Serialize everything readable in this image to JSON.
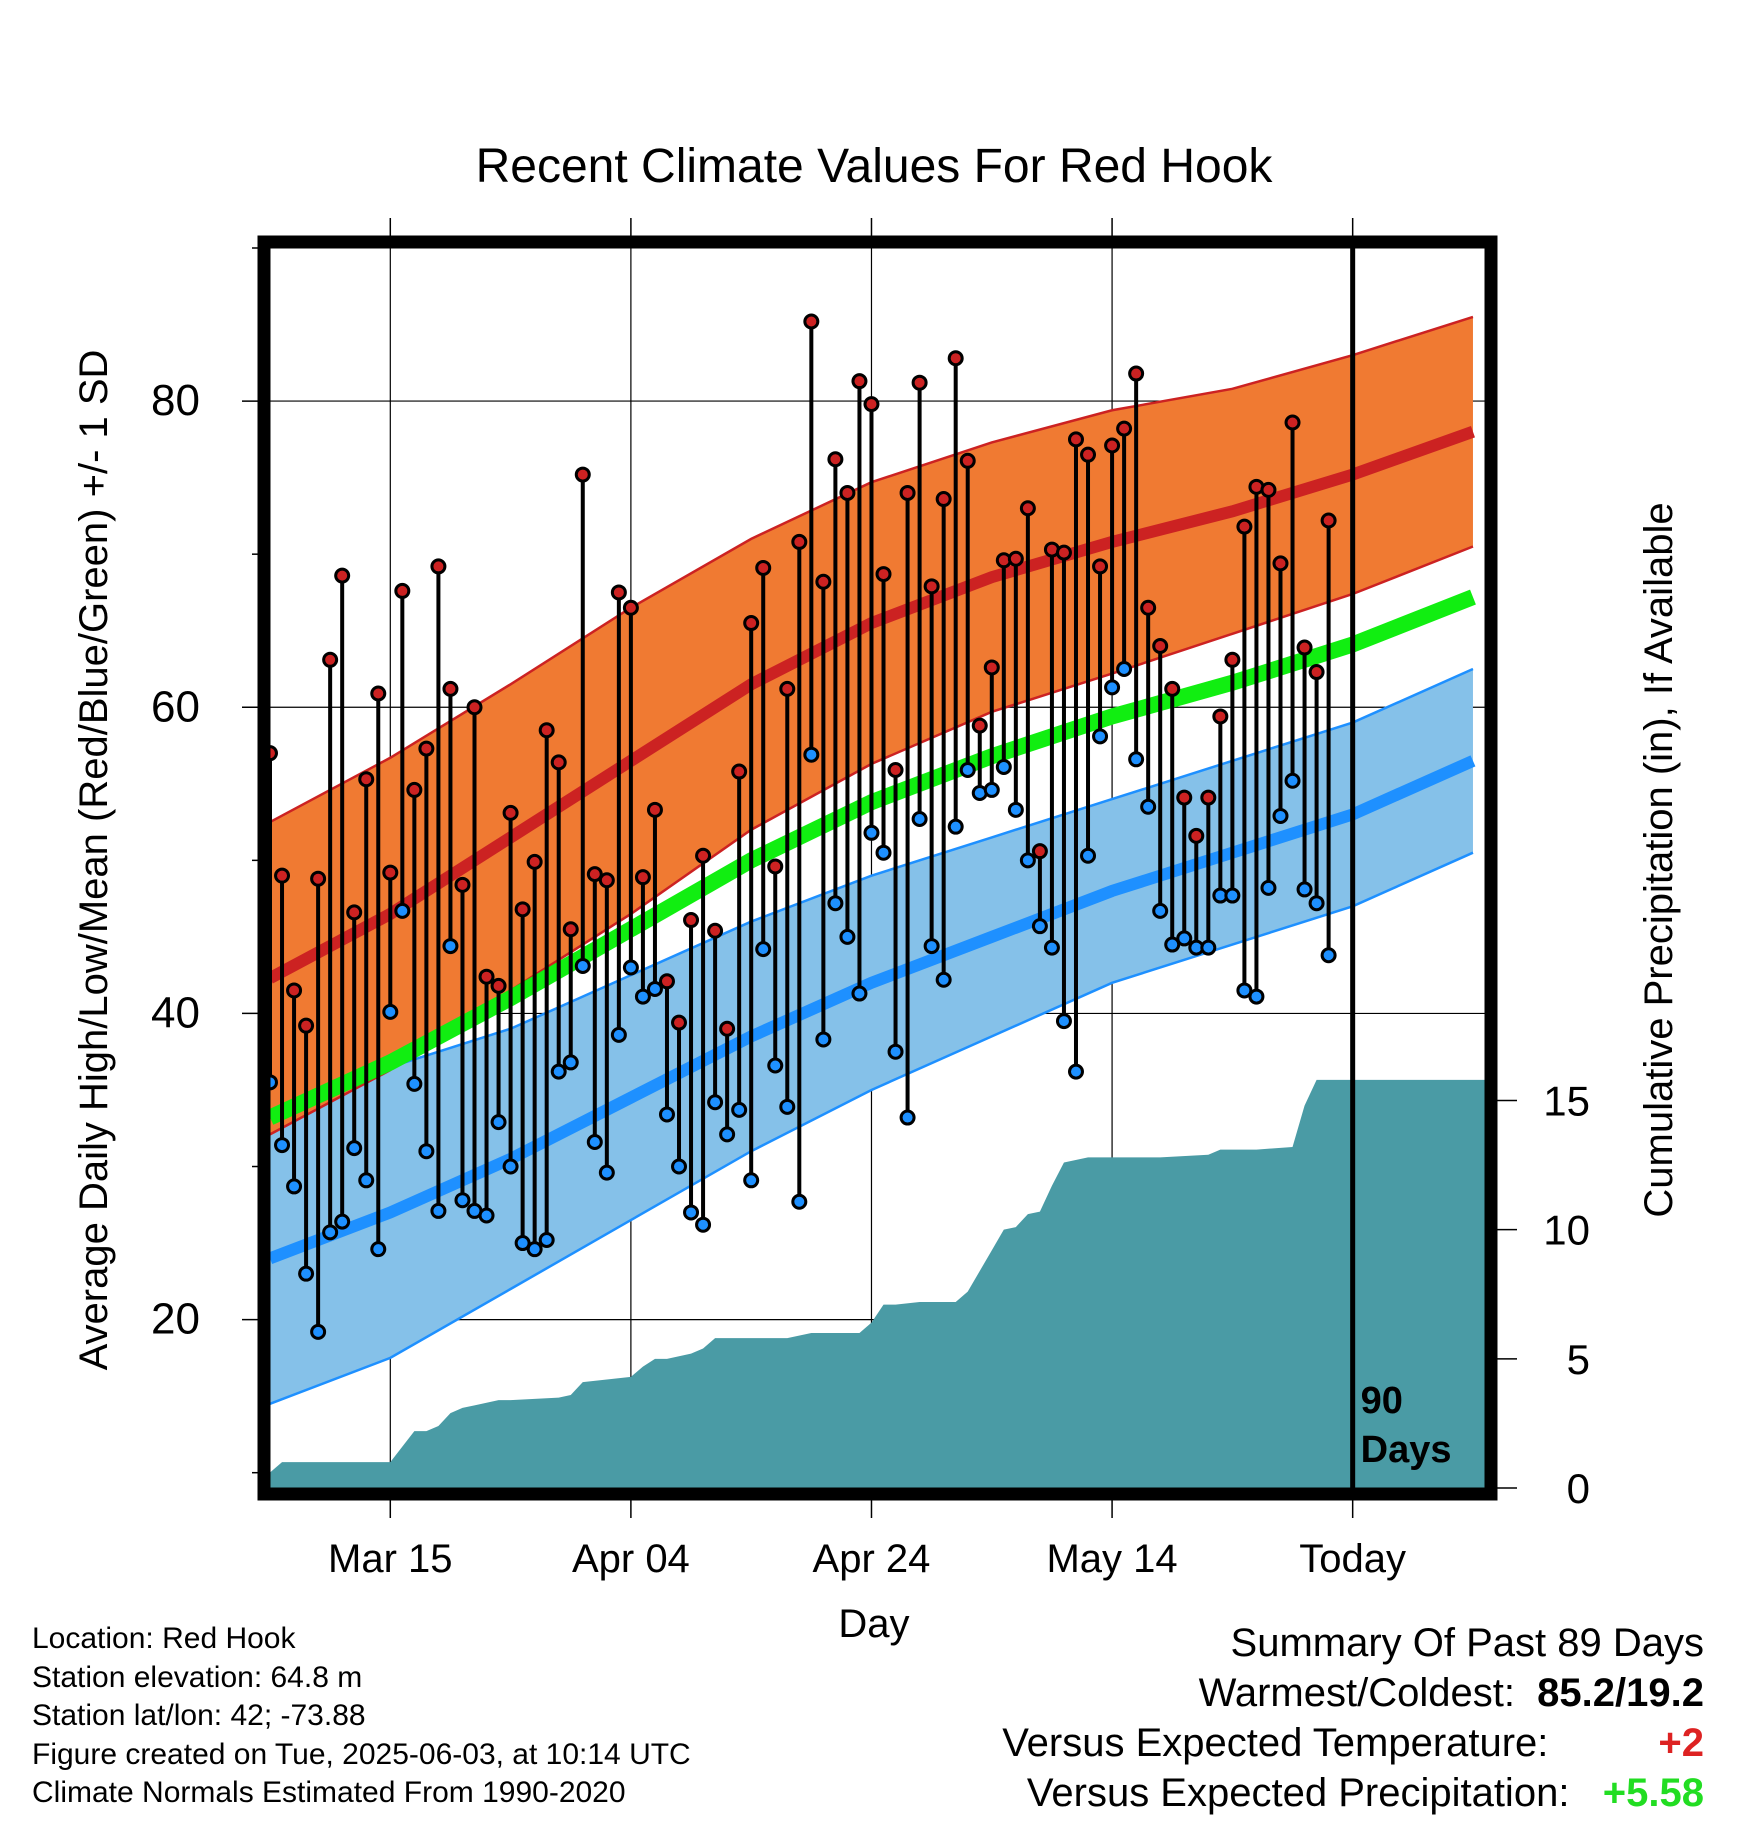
{
  "chart_data": {
    "type": "line",
    "title": "Recent Climate Values For Red Hook",
    "xlabel": "Day",
    "ylabel": "Average Daily High/Low/Mean (Red/Blue/Green) +/- 1 SD",
    "y2label": "Cumulative Precipitation (in), If Available",
    "xlim": [
      1,
      102
    ],
    "ylim": [
      9,
      90
    ],
    "y2lim": [
      0,
      48
    ],
    "x_ticks": [
      {
        "x": 11,
        "label": "Mar 15"
      },
      {
        "x": 31,
        "label": "Apr 04"
      },
      {
        "x": 51,
        "label": "Apr 24"
      },
      {
        "x": 71,
        "label": "May 14"
      },
      {
        "x": 91,
        "label": "Today"
      }
    ],
    "y_ticks": [
      20,
      40,
      60,
      80
    ],
    "y2_ticks": [
      0,
      5,
      10,
      15
    ],
    "today_marker": {
      "x": 91,
      "label_line1": "90",
      "label_line2": "Days"
    },
    "colors": {
      "high_band": "#f07a32",
      "high_mean": "#cc2222",
      "low_band": "#85c1e9",
      "low_mean": "#1e90ff",
      "mean": "#11ee11",
      "precip": "#4a9ba5",
      "high_point": "#cc2222",
      "low_point": "#1e90ff"
    },
    "normals": {
      "x": [
        1,
        11,
        21,
        31,
        41,
        51,
        61,
        71,
        81,
        91,
        101
      ],
      "high_mean": [
        42.3,
        46.5,
        51.5,
        56.5,
        61.5,
        65.5,
        68.5,
        70.8,
        72.8,
        75.2,
        78.0
      ],
      "high_sd": [
        10.2,
        10.2,
        10.0,
        10.0,
        9.5,
        9.2,
        8.8,
        8.6,
        8.0,
        7.8,
        7.5
      ],
      "low_mean": [
        24.0,
        27.0,
        30.5,
        34.5,
        38.5,
        42.0,
        45.0,
        48.0,
        50.5,
        53.0,
        56.5
      ],
      "low_sd": [
        9.5,
        9.5,
        8.5,
        8.0,
        7.5,
        7.0,
        6.5,
        6.0,
        6.0,
        6.0,
        6.0
      ],
      "mean": [
        33.2,
        36.8,
        41.0,
        45.5,
        50.0,
        53.8,
        56.8,
        59.4,
        61.6,
        64.1,
        67.2
      ]
    },
    "daily_highs": [
      57.0,
      49.0,
      41.5,
      39.2,
      48.8,
      63.1,
      68.6,
      46.6,
      55.3,
      60.9,
      49.2,
      67.6,
      54.6,
      57.3,
      69.2,
      61.2,
      48.4,
      60.0,
      42.4,
      41.8,
      53.1,
      46.8,
      49.9,
      58.5,
      56.4,
      45.5,
      75.2,
      49.1,
      48.7,
      67.5,
      66.5,
      48.9,
      53.3,
      42.1,
      39.4,
      46.1,
      50.3,
      45.4,
      39.0,
      55.8,
      65.5,
      69.1,
      49.6,
      61.2,
      70.8,
      85.2,
      68.2,
      76.2,
      74.0,
      81.3,
      79.8,
      68.7,
      55.9,
      74.0,
      81.2,
      67.9,
      73.6,
      82.8,
      76.1,
      58.8,
      62.6,
      69.6,
      69.7,
      73.0,
      50.6,
      70.3,
      70.1,
      77.5,
      76.5,
      69.2,
      77.1,
      78.2,
      81.8,
      66.5,
      64.0,
      61.2,
      54.1,
      51.6,
      54.1,
      59.4,
      63.1,
      71.8,
      74.4,
      74.2,
      69.4,
      78.6,
      63.9,
      62.3,
      72.2
    ],
    "daily_lows": [
      35.5,
      31.4,
      28.7,
      23.0,
      19.2,
      25.7,
      26.4,
      31.2,
      29.1,
      24.6,
      40.1,
      46.7,
      35.4,
      31.0,
      27.1,
      44.4,
      27.8,
      27.1,
      26.8,
      32.9,
      30.0,
      25.0,
      24.6,
      25.2,
      36.2,
      36.8,
      43.1,
      31.6,
      29.6,
      38.6,
      43.0,
      41.1,
      41.6,
      33.4,
      30.0,
      27.0,
      26.2,
      34.2,
      32.1,
      33.7,
      29.1,
      44.2,
      36.6,
      33.9,
      27.7,
      56.9,
      38.3,
      47.2,
      45.0,
      41.3,
      51.8,
      50.5,
      37.5,
      33.2,
      52.7,
      44.4,
      42.2,
      52.2,
      55.9,
      54.4,
      54.6,
      56.1,
      53.3,
      50.0,
      45.7,
      44.3,
      39.5,
      36.2,
      50.3,
      58.1,
      61.3,
      62.5,
      56.6,
      53.5,
      46.7,
      44.5,
      44.9,
      44.3,
      44.3,
      47.7,
      47.7,
      41.5,
      41.1,
      48.2,
      52.9,
      55.2,
      48.1,
      47.2,
      43.8
    ],
    "precip_cumulative": {
      "x": [
        1,
        2,
        3,
        10,
        11,
        12,
        13,
        14,
        15,
        16,
        17,
        18,
        19,
        20,
        21,
        25,
        26,
        27,
        29,
        31,
        32,
        33,
        34,
        36,
        37,
        38,
        40,
        44,
        46,
        50,
        51,
        52,
        53,
        55,
        58,
        59,
        60,
        61,
        62,
        63,
        64,
        65,
        66,
        67,
        69,
        72,
        75,
        79,
        80,
        83,
        86,
        87,
        88,
        91,
        102
      ],
      "values": [
        0.6,
        1.0,
        1.0,
        1.0,
        1.0,
        1.6,
        2.2,
        2.2,
        2.4,
        2.9,
        3.1,
        3.2,
        3.3,
        3.4,
        3.4,
        3.5,
        3.6,
        4.1,
        4.2,
        4.3,
        4.7,
        5.0,
        5.0,
        5.2,
        5.4,
        5.8,
        5.8,
        5.8,
        6.0,
        6.0,
        6.4,
        7.1,
        7.1,
        7.2,
        7.2,
        7.6,
        8.4,
        9.2,
        10.0,
        10.1,
        10.6,
        10.7,
        11.7,
        12.6,
        12.8,
        12.8,
        12.8,
        12.9,
        13.1,
        13.1,
        13.2,
        14.8,
        15.8,
        15.8,
        15.8
      ]
    }
  },
  "info": {
    "location": "Location: Red Hook",
    "elevation": "Station elevation: 64.8 m",
    "latlon": "Station lat/lon: 42; -73.88",
    "created": "Figure created on Tue, 2025-06-03, at 10:14 UTC",
    "normals": "Climate Normals Estimated From 1990-2020"
  },
  "summary": {
    "heading": "Summary Of Past 89 Days",
    "warm_cold_label": "Warmest/Coldest:",
    "warm_cold_value": "85.2/19.2",
    "temp_label": "Versus Expected Temperature:",
    "temp_value": "+2",
    "temp_color": "#dd2222",
    "precip_label": "Versus Expected Precipitation:",
    "precip_value": "+5.58",
    "precip_color": "#22dd22"
  }
}
